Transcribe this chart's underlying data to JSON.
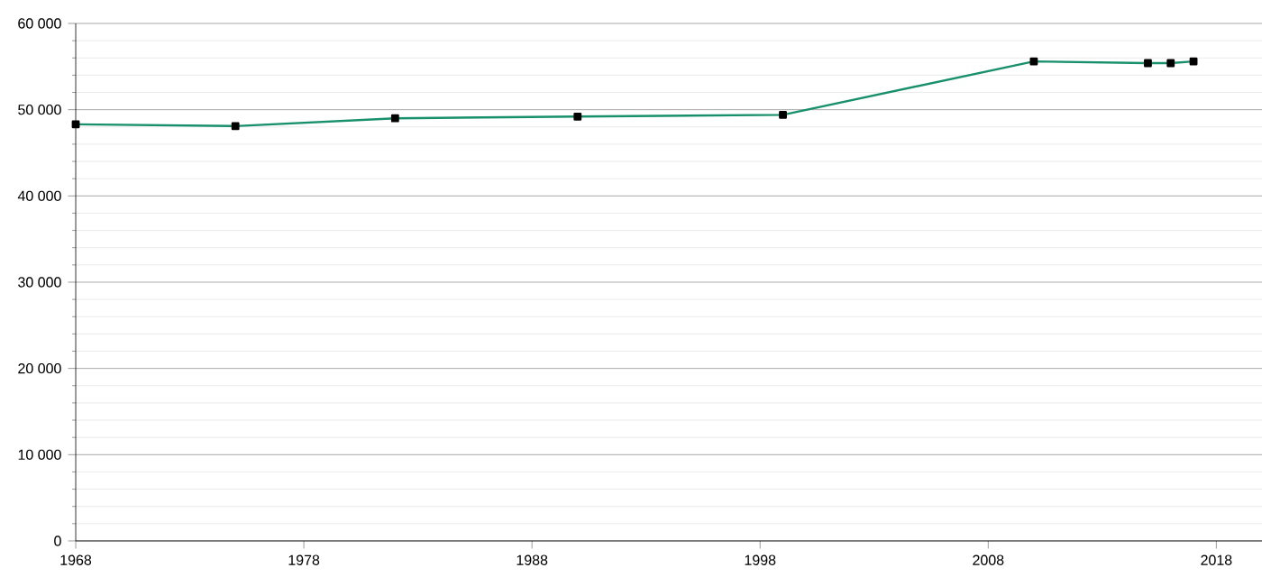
{
  "chart_data": {
    "type": "line",
    "x": [
      1968,
      1975,
      1982,
      1990,
      1999,
      2010,
      2015,
      2016,
      2017
    ],
    "series": [
      {
        "color": "#17906b",
        "values": [
          48300,
          48100,
          49000,
          49200,
          49400,
          55600,
          55400,
          55400,
          55600
        ]
      }
    ],
    "xlim": [
      1968,
      2020
    ],
    "xticks": [
      1968,
      1978,
      1988,
      1998,
      2008,
      2018
    ],
    "ylim": [
      0,
      60000
    ],
    "yticks": [
      {
        "value": 0,
        "label": "0"
      },
      {
        "value": 10000,
        "label": "10 000"
      },
      {
        "value": 20000,
        "label": "20 000"
      },
      {
        "value": 30000,
        "label": "30 000"
      },
      {
        "value": 40000,
        "label": "40 000"
      },
      {
        "value": 50000,
        "label": "50 000"
      },
      {
        "value": 60000,
        "label": "60 000"
      }
    ],
    "grid": "y",
    "marker": "square",
    "line_style": "solid"
  }
}
